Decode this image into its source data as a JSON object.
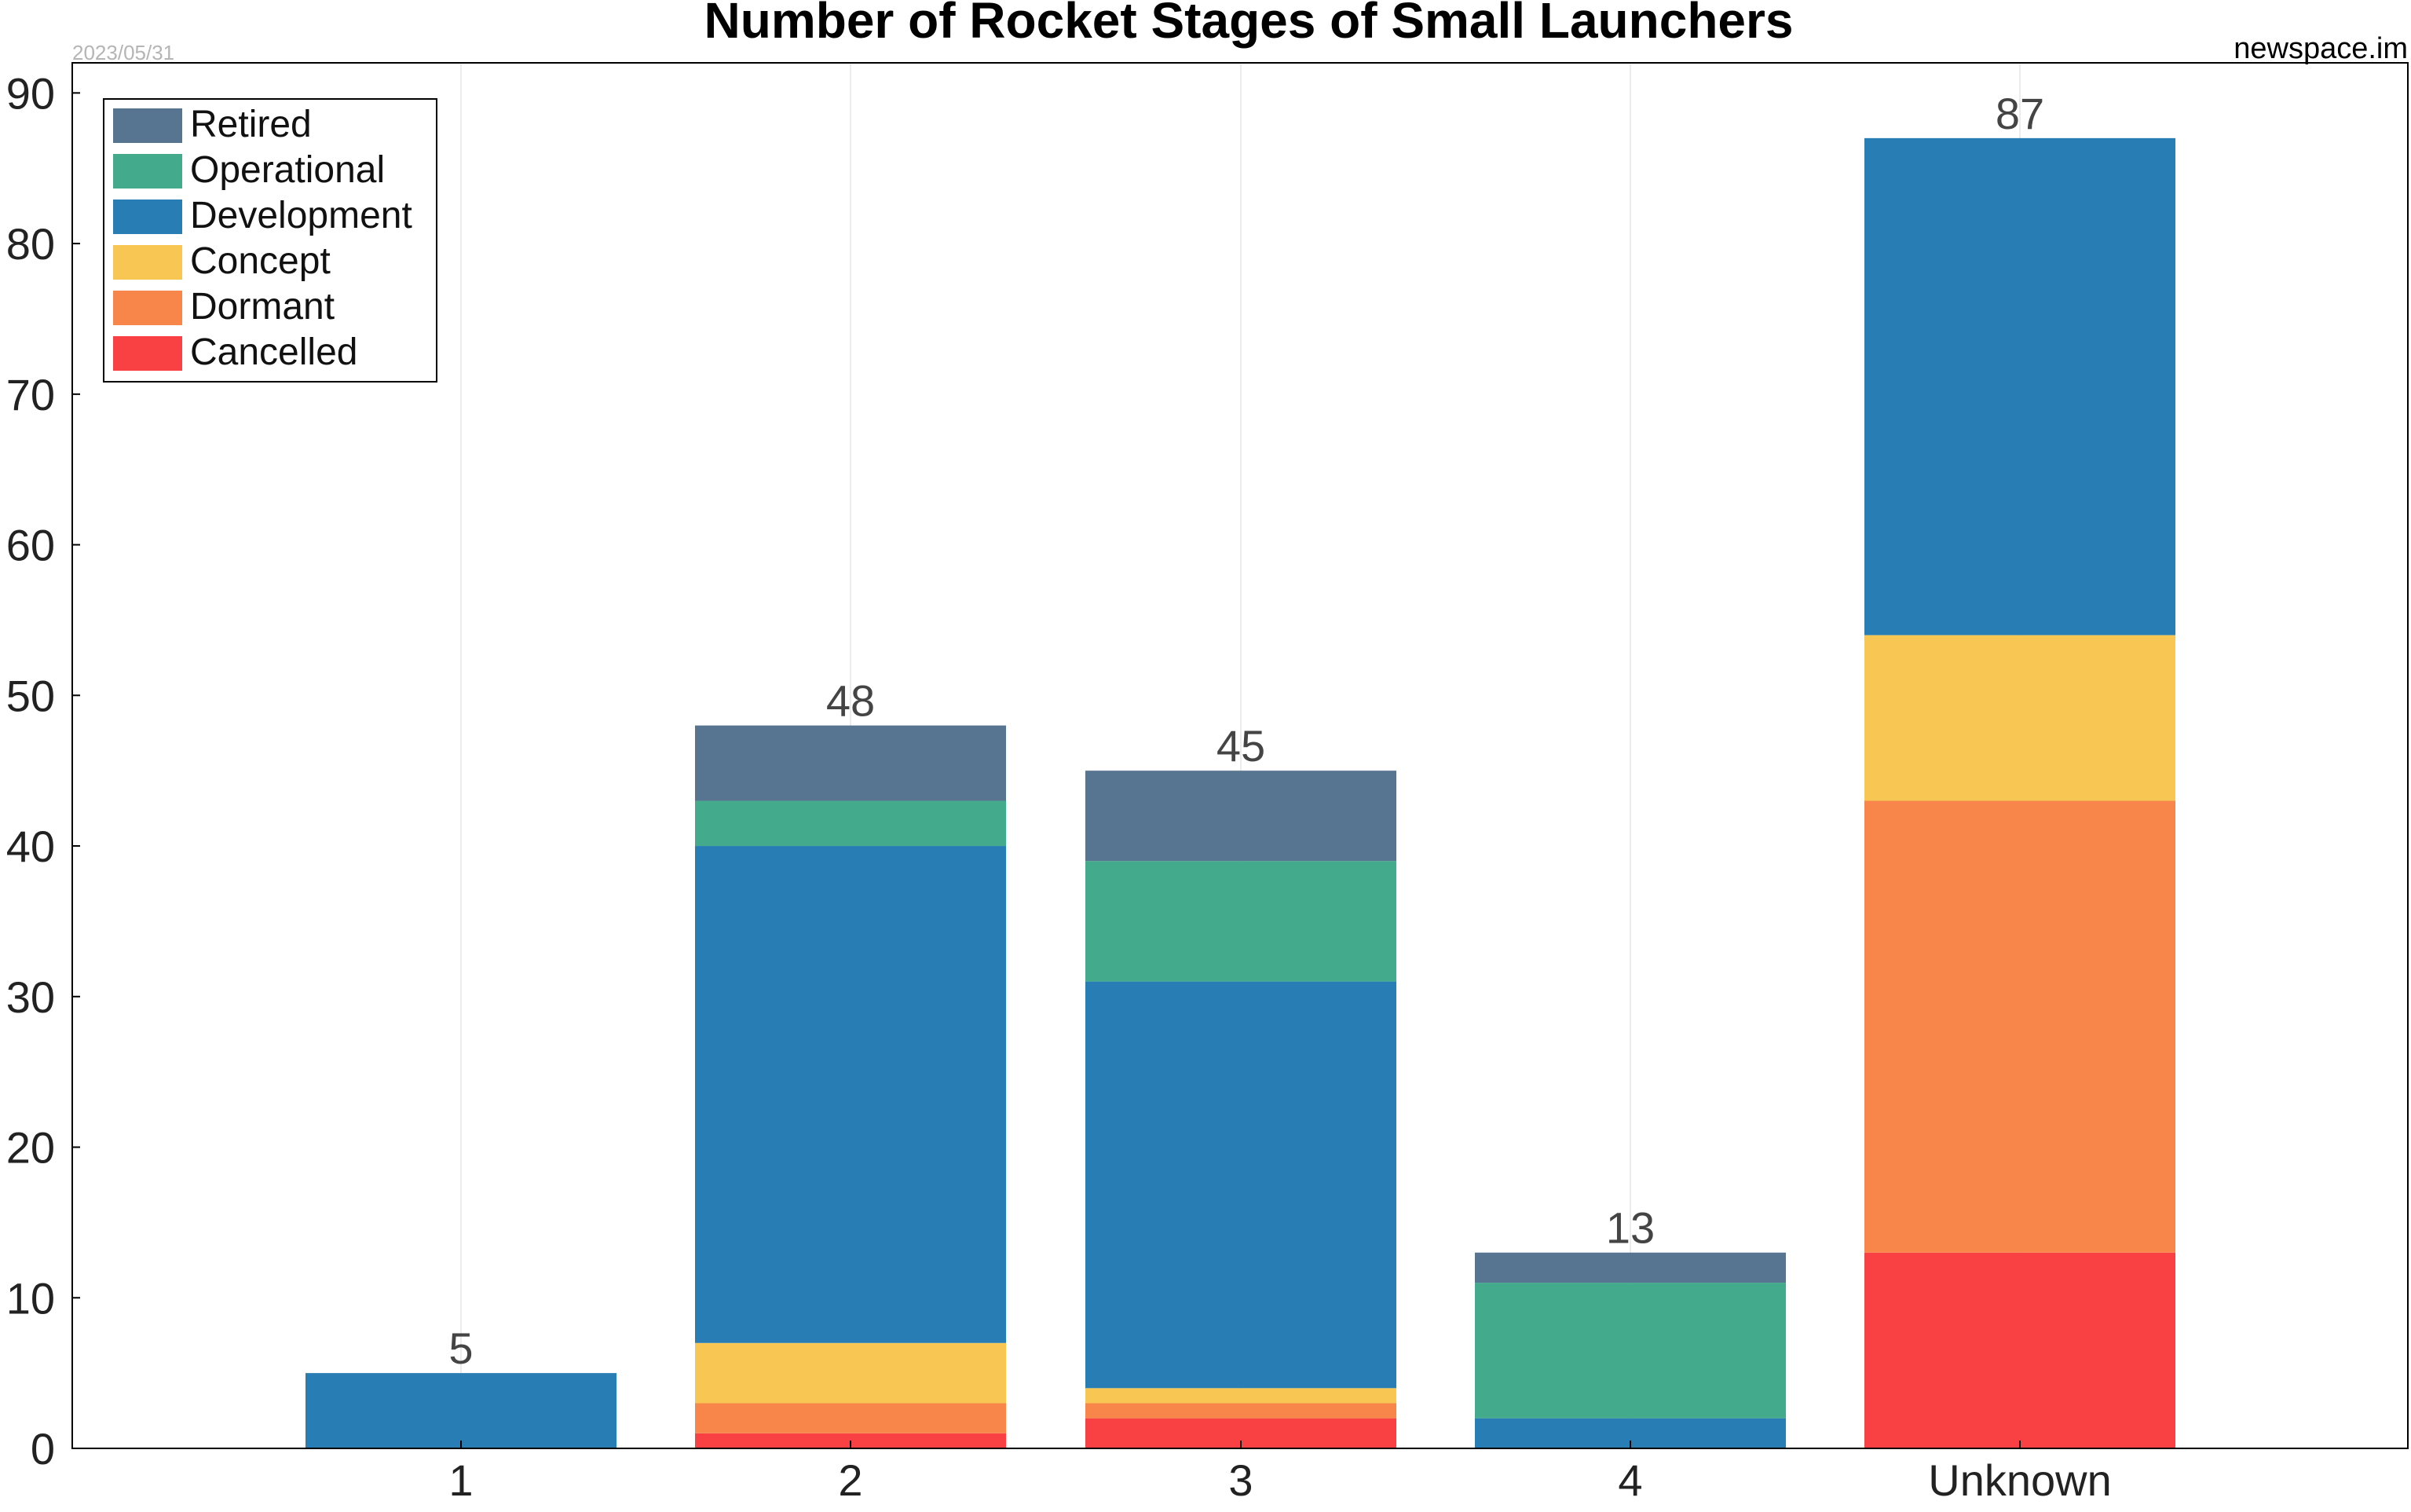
{
  "header": {
    "date": "2023/05/31",
    "source": "newspace.im"
  },
  "chart_data": {
    "type": "bar",
    "stacked": true,
    "title": "Number of Rocket Stages of Small Launchers",
    "xlabel": "",
    "ylabel": "",
    "categories": [
      "1",
      "2",
      "3",
      "4",
      "Unknown"
    ],
    "ylim": [
      0,
      92
    ],
    "yticks": [
      0,
      10,
      20,
      30,
      40,
      50,
      60,
      70,
      80,
      90
    ],
    "grid": "vertical",
    "legend_position": "top-left",
    "totals": [
      5,
      48,
      45,
      13,
      87
    ],
    "series": [
      {
        "name": "Cancelled",
        "color": "#f94144",
        "values": [
          0,
          1,
          2,
          0,
          13
        ]
      },
      {
        "name": "Dormant",
        "color": "#f8864a",
        "values": [
          0,
          2,
          1,
          0,
          30
        ]
      },
      {
        "name": "Concept",
        "color": "#f8c753",
        "values": [
          0,
          4,
          1,
          0,
          11
        ]
      },
      {
        "name": "Development",
        "color": "#287db5",
        "values": [
          5,
          33,
          27,
          2,
          33
        ]
      },
      {
        "name": "Operational",
        "color": "#43aa8b",
        "values": [
          0,
          3,
          8,
          9,
          0
        ]
      },
      {
        "name": "Retired",
        "color": "#577590",
        "values": [
          0,
          5,
          6,
          2,
          0
        ]
      }
    ],
    "legend_order": [
      "Retired",
      "Operational",
      "Development",
      "Concept",
      "Dormant",
      "Cancelled"
    ]
  }
}
